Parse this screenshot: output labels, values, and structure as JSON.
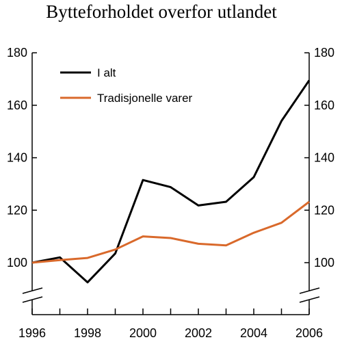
{
  "chart_data": {
    "type": "line",
    "title": "Bytteforholdet overfor utlandet",
    "x": [
      1996,
      1997,
      1998,
      1999,
      2000,
      2001,
      2002,
      2003,
      2004,
      2005,
      2006
    ],
    "x_ticks": [
      "1996",
      "1998",
      "2000",
      "2002",
      "2004",
      "2006"
    ],
    "y_ticks": [
      "100",
      "120",
      "140",
      "160",
      "180"
    ],
    "ylim": [
      90,
      180
    ],
    "axis_break": true,
    "legend_position": "top-left",
    "series": [
      {
        "name": "I alt",
        "color": "#000000",
        "values": [
          100,
          102,
          92.5,
          103.5,
          131.5,
          128.8,
          121.8,
          123.2,
          132.6,
          154,
          169.5
        ]
      },
      {
        "name": "Tradisjonelle varer",
        "color": "#d9692b",
        "values": [
          100,
          101,
          101.8,
          105,
          110,
          109.4,
          107.2,
          106.6,
          111.4,
          115.2,
          123.2
        ]
      }
    ]
  }
}
